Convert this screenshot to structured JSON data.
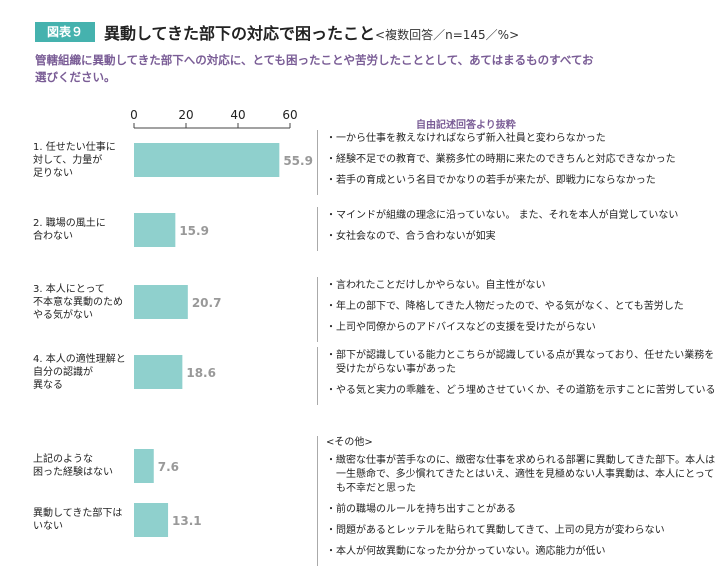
{
  "header": {
    "badge": "図表９",
    "title": "異動してきた部下の対応で困ったこと",
    "subtitle": "<複数回答／n=145／%>"
  },
  "question": "管轄組織に異動してきた部下への対応に、とても困ったことや苦労したこととして、あてはまるものすべてお選びください。",
  "freetext_title": "自由記述回答より抜粋",
  "colors": {
    "bar": "#8fd0cd",
    "accent": "#45b2ae",
    "question": "#7a5d96"
  },
  "chart_data": {
    "type": "bar",
    "orientation": "horizontal",
    "categories": [
      "1. 任せたい仕事に対して、力量が足りない",
      "2. 職場の風土に合わない",
      "3. 本人にとって不本意な異動のためやる気がない",
      "4. 本人の適性理解と自分の認識が異なる",
      "上記のような困った経験はない",
      "異動してきた部下はいない"
    ],
    "category_lines": [
      [
        "1. 任せたい仕事に",
        "対して、力量が",
        "足りない"
      ],
      [
        "2. 職場の風土に",
        "合わない"
      ],
      [
        "3. 本人にとって",
        "不本意な異動のため",
        "やる気がない"
      ],
      [
        "4. 本人の適性理解と",
        "自分の認識が",
        "異なる"
      ],
      [
        "上記のような",
        "困った経験はない"
      ],
      [
        "異動してきた部下は",
        "いない"
      ]
    ],
    "values": [
      55.9,
      15.9,
      20.7,
      18.6,
      7.6,
      13.1
    ],
    "value_labels": [
      "55.9",
      "15.9",
      "20.7",
      "18.6",
      "7.6",
      "13.1"
    ],
    "xlim": [
      0,
      60
    ],
    "xticks": [
      "0",
      "20",
      "40",
      "60"
    ],
    "grid": false
  },
  "comments": [
    {
      "items": [
        "一から仕事を教えなければならず新入社員と変わらなかった",
        "経験不足での教育で、業務多忙の時期に来たのできちんと対応できなかった",
        "若手の育成という名目でかなりの若手が来たが、即戦力にならなかった"
      ]
    },
    {
      "items": [
        "マインドが組織の理念に沿っていない。 また、それを本人が自覚していない",
        "女社会なので、合う合わないが如実"
      ]
    },
    {
      "items": [
        "言われたことだけしかやらない。自主性がない",
        "年上の部下で、降格してきた人物だったので、やる気がなく、とても苦労した",
        "上司や同僚からのアドバイスなどの支援を受けたがらない"
      ]
    },
    {
      "items": [
        "部下が認識している能力とこちらが認識している点が異なっており、任せたい業務を受けたがらない事があった",
        "やる気と実力の乖離を、どう埋めさせていくか、その道筋を示すことに苦労している"
      ]
    },
    {
      "title": "<その他>",
      "items": [
        "緻密な仕事が苦手なのに、緻密な仕事を求められる部署に異動してきた部下。本人は一生懸命で、多少慣れてきたとはいえ、適性を見極めない人事異動は、本人にとっても不幸だと思った",
        "前の職場のルールを持ち出すことがある",
        "問題があるとレッテルを貼られて異動してきて、上司の見方が変わらない",
        "本人が何故異動になったか分かっていない。適応能力が低い"
      ]
    }
  ]
}
